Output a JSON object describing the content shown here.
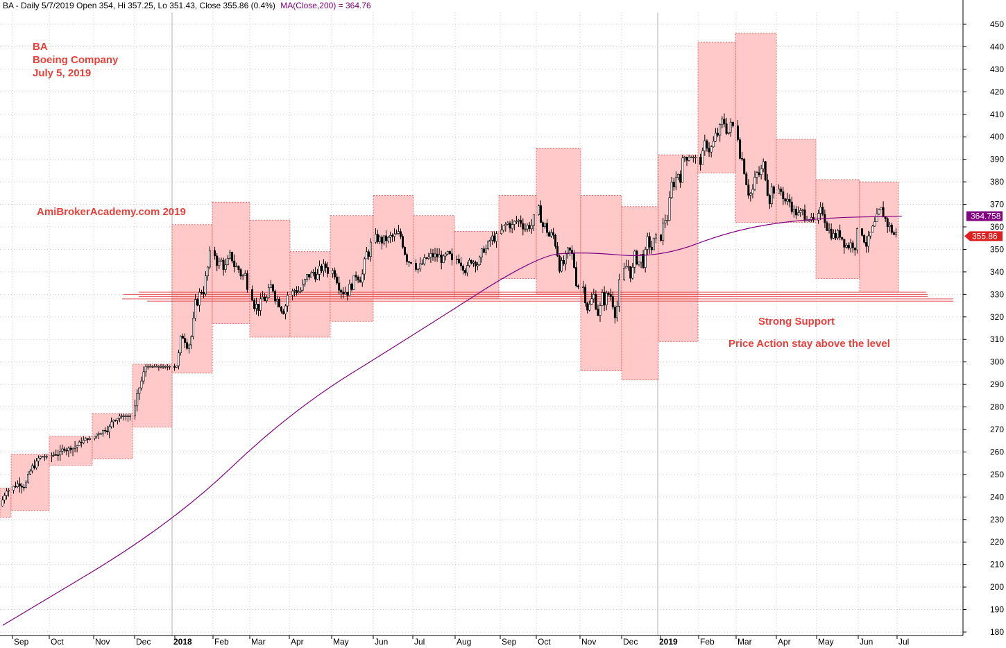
{
  "header": {
    "ticker_info": "BA - Daily 5/7/2019 Open 354, Hi 357.25, Lo 351.43, Close 355.86 (0.4%)",
    "ma_info": "MA(Close,200) = 364.76"
  },
  "annotations": {
    "ticker": "BA",
    "company": "Boeing Company",
    "date": "July 5, 2019",
    "watermark": "AmiBrokerAcademy.com  2019",
    "support_title": "Strong Support",
    "support_note": "Price Action stay above the level"
  },
  "chart_data": {
    "type": "candlestick",
    "symbol": "BA",
    "period": "Daily",
    "ylim": [
      180,
      452
    ],
    "y_ticks": [
      180,
      190,
      200,
      210,
      220,
      230,
      240,
      250,
      260,
      270,
      280,
      290,
      300,
      310,
      320,
      330,
      340,
      350,
      360,
      370,
      380,
      390,
      400,
      410,
      420,
      430,
      440,
      450
    ],
    "month_labels": [
      "Sep",
      "Oct",
      "Nov",
      "Dec",
      "2018",
      "Feb",
      "Mar",
      "Apr",
      "May",
      "Jun",
      "Jul",
      "Aug",
      "Sep",
      "Oct",
      "Nov",
      "Dec",
      "2019",
      "Feb",
      "Mar",
      "Apr",
      "May",
      "Jun",
      "Jul"
    ],
    "year_boundaries": [
      "2018",
      "2019"
    ],
    "monthly_ranges": [
      {
        "month": "Aug 2017",
        "low": 231,
        "high": 244
      },
      {
        "month": "Sep 2017",
        "low": 234,
        "high": 259
      },
      {
        "month": "Oct 2017",
        "low": 254,
        "high": 267
      },
      {
        "month": "Nov 2017",
        "low": 257,
        "high": 277
      },
      {
        "month": "Dec 2017",
        "low": 271,
        "high": 299
      },
      {
        "month": "Jan 2018",
        "low": 295,
        "high": 361
      },
      {
        "month": "Feb 2018",
        "low": 317,
        "high": 371
      },
      {
        "month": "Mar 2018",
        "low": 311,
        "high": 363
      },
      {
        "month": "Apr 2018",
        "low": 311,
        "high": 349
      },
      {
        "month": "May 2018",
        "low": 318,
        "high": 365
      },
      {
        "month": "Jun 2018",
        "low": 328,
        "high": 374
      },
      {
        "month": "Jul 2018",
        "low": 328,
        "high": 365
      },
      {
        "month": "Aug 2018",
        "low": 328,
        "high": 358
      },
      {
        "month": "Sep 2018",
        "low": 337,
        "high": 374
      },
      {
        "month": "Oct 2018",
        "low": 330,
        "high": 395
      },
      {
        "month": "Nov 2018",
        "low": 296,
        "high": 374
      },
      {
        "month": "Dec 2018",
        "low": 292,
        "high": 369
      },
      {
        "month": "Jan 2019",
        "low": 309,
        "high": 392
      },
      {
        "month": "Feb 2019",
        "low": 384,
        "high": 442
      },
      {
        "month": "Mar 2019",
        "low": 362,
        "high": 446
      },
      {
        "month": "Apr 2019",
        "low": 362,
        "high": 399
      },
      {
        "month": "May 2019",
        "low": 337,
        "high": 381
      },
      {
        "month": "Jun 2019",
        "low": 331,
        "high": 380
      }
    ],
    "ma_points": [
      {
        "month": "Aug 2017",
        "value": 183
      },
      {
        "month": "Jan 2018",
        "value": 228
      },
      {
        "month": "Apr 2018",
        "value": 278
      },
      {
        "month": "Jul 2018",
        "value": 312
      },
      {
        "month": "Oct 2018",
        "value": 347
      },
      {
        "month": "Nov 2018",
        "value": 349
      },
      {
        "month": "Jan 2019",
        "value": 346
      },
      {
        "month": "Mar 2019",
        "value": 359
      },
      {
        "month": "May 2019",
        "value": 364
      },
      {
        "month": "Jul 2019",
        "value": 364.76
      }
    ],
    "support_levels": [
      331,
      330,
      329,
      328,
      327
    ],
    "last_close": 355.86,
    "ma_label": "364.758",
    "close_label": "355.86",
    "colors": {
      "box_fill": "#ffc0c0",
      "box_stroke": "#e05050",
      "ma_line": "#800080",
      "support_line": "#e05050",
      "annotation_text": "#e8403a",
      "ma_badge": "#800080",
      "close_badge": "#e02020",
      "grid": "#c8c8c8"
    }
  }
}
